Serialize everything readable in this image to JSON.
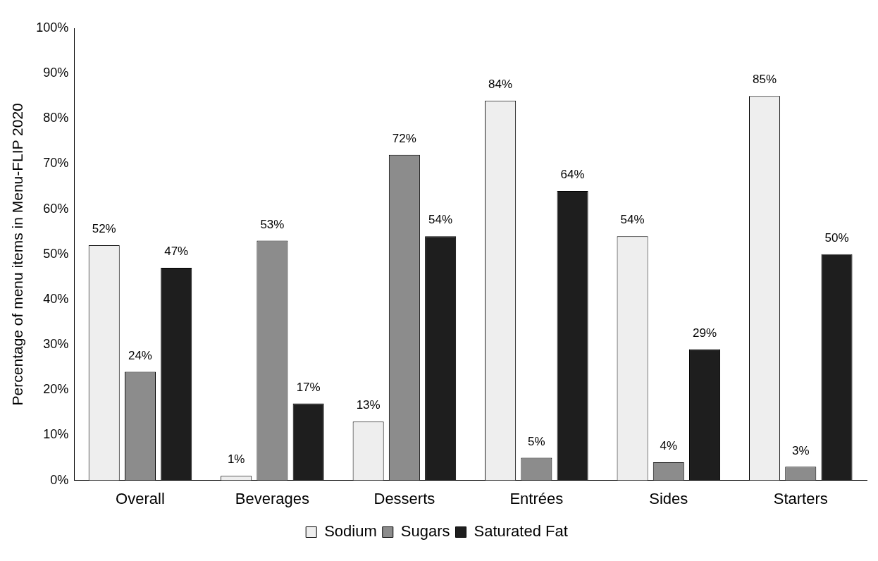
{
  "chart_data": {
    "type": "bar",
    "ylabel": "Percentage of menu items in Menu-FLIP 2020",
    "categories": [
      "Overall",
      "Beverages",
      "Desserts",
      "Entrées",
      "Sides",
      "Starters"
    ],
    "series": [
      {
        "name": "Sodium",
        "color": "#eeeeee",
        "values": [
          52,
          1,
          13,
          84,
          54,
          85
        ],
        "value_labels": [
          "52%",
          "1%",
          "13%",
          "84%",
          "54%",
          "85%"
        ]
      },
      {
        "name": "Sugars",
        "color": "#8c8c8c",
        "values": [
          24,
          53,
          72,
          5,
          4,
          3
        ],
        "value_labels": [
          "24%",
          "53%",
          "72%",
          "5%",
          "4%",
          "3%"
        ]
      },
      {
        "name": "Saturated Fat",
        "color": "#1e1e1e",
        "values": [
          47,
          17,
          54,
          64,
          29,
          50
        ],
        "value_labels": [
          "47%",
          "17%",
          "54%",
          "64%",
          "29%",
          "50%"
        ]
      }
    ],
    "ylim": [
      0,
      100
    ],
    "yticks": [
      {
        "value": 0,
        "label": "0%"
      },
      {
        "value": 10,
        "label": "10%"
      },
      {
        "value": 20,
        "label": "20%"
      },
      {
        "value": 30,
        "label": "30%"
      },
      {
        "value": 40,
        "label": "40%"
      },
      {
        "value": 50,
        "label": "50%"
      },
      {
        "value": 60,
        "label": "60%"
      },
      {
        "value": 70,
        "label": "70%"
      },
      {
        "value": 80,
        "label": "80%"
      },
      {
        "value": 90,
        "label": "90%"
      },
      {
        "value": 100,
        "label": "100%"
      }
    ],
    "grid": false,
    "legend": "bottom"
  }
}
